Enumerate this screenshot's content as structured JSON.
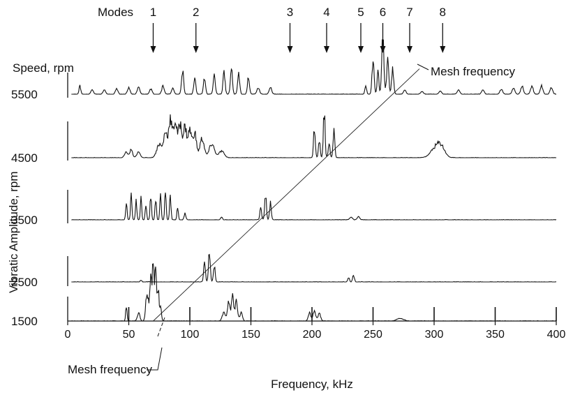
{
  "chart_data": {
    "type": "line",
    "title": "",
    "xlabel": "Frequency, kHz",
    "ylabel": "Vibration Amplitude, rpm",
    "ylabel_visible": "Vibratic Amplitude, rpm",
    "speed_label": "Speed, rpm",
    "xlim": [
      0,
      400
    ],
    "x_ticks": [
      0,
      50,
      100,
      150,
      200,
      250,
      300,
      350,
      400
    ],
    "x_tick_labels": [
      "0",
      "50",
      "100",
      "150",
      "200",
      "250",
      "300",
      "350",
      "400"
    ],
    "modes": {
      "label": "Modes",
      "values": [
        70,
        105,
        182,
        212,
        240,
        258,
        280,
        307
      ],
      "labels": [
        "1",
        "2",
        "3",
        "4",
        "5",
        "6",
        "7",
        "8"
      ]
    },
    "mesh_frequency": {
      "label_top": "Mesh frequency",
      "label_bottom": "Mesh frequency",
      "line_points": [
        [
          70,
          1500
        ],
        [
          288,
          5900
        ]
      ]
    },
    "series": [
      {
        "speed": 1500,
        "label": "1500",
        "peaks": [
          [
            48,
            0.25,
            0.8
          ],
          [
            58,
            0.15,
            1.5
          ],
          [
            65,
            0.55,
            1.5
          ],
          [
            68,
            0.85,
            1.2
          ],
          [
            70,
            1.0,
            1.0
          ],
          [
            72,
            0.9,
            1.0
          ],
          [
            74,
            0.6,
            1.0
          ],
          [
            76,
            0.3,
            1.0
          ],
          [
            128,
            0.15,
            2
          ],
          [
            132,
            0.35,
            1.5
          ],
          [
            135,
            0.45,
            1.2
          ],
          [
            138,
            0.35,
            1.5
          ],
          [
            142,
            0.15,
            1.5
          ],
          [
            198,
            0.15,
            1.5
          ],
          [
            202,
            0.2,
            1.5
          ],
          [
            206,
            0.15,
            1.5
          ],
          [
            272,
            0.05,
            4
          ]
        ],
        "markers": [
          50,
          100,
          150,
          200,
          250,
          300,
          350,
          400
        ]
      },
      {
        "speed": 2500,
        "label": "2500",
        "peaks": [
          [
            60,
            0.03,
            1
          ],
          [
            112,
            0.4,
            1
          ],
          [
            116,
            0.55,
            1
          ],
          [
            120,
            0.3,
            1
          ],
          [
            230,
            0.08,
            1
          ],
          [
            234,
            0.12,
            1
          ]
        ],
        "markers": []
      },
      {
        "speed": 3500,
        "label": "3500",
        "peaks": [
          [
            48,
            0.3,
            0.8
          ],
          [
            52,
            0.45,
            0.8
          ],
          [
            56,
            0.35,
            0.8
          ],
          [
            60,
            0.4,
            0.8
          ],
          [
            64,
            0.3,
            0.8
          ],
          [
            68,
            0.45,
            0.8
          ],
          [
            72,
            0.4,
            0.8
          ],
          [
            76,
            0.5,
            0.8
          ],
          [
            80,
            0.55,
            0.8
          ],
          [
            84,
            0.45,
            0.8
          ],
          [
            90,
            0.25,
            0.8
          ],
          [
            96,
            0.12,
            1
          ],
          [
            126,
            0.05,
            1
          ],
          [
            158,
            0.2,
            1
          ],
          [
            162,
            0.45,
            1
          ],
          [
            166,
            0.3,
            1
          ],
          [
            232,
            0.05,
            1.5
          ],
          [
            238,
            0.06,
            1.5
          ]
        ],
        "markers": []
      },
      {
        "speed": 4500,
        "label": "4500",
        "peaks": [
          [
            48,
            0.1,
            2
          ],
          [
            52,
            0.15,
            1.5
          ],
          [
            58,
            0.1,
            2
          ],
          [
            75,
            0.25,
            3
          ],
          [
            80,
            0.45,
            2
          ],
          [
            84,
            0.7,
            2
          ],
          [
            88,
            0.65,
            2
          ],
          [
            92,
            0.6,
            2
          ],
          [
            96,
            0.55,
            2
          ],
          [
            100,
            0.5,
            2
          ],
          [
            104,
            0.45,
            2
          ],
          [
            110,
            0.35,
            2.5
          ],
          [
            118,
            0.25,
            3
          ],
          [
            126,
            0.12,
            3
          ],
          [
            202,
            0.55,
            1
          ],
          [
            206,
            0.3,
            1
          ],
          [
            210,
            0.85,
            1
          ],
          [
            214,
            0.3,
            1
          ],
          [
            218,
            0.5,
            1
          ],
          [
            302,
            0.2,
            6
          ],
          [
            306,
            0.12,
            4
          ]
        ],
        "markers": []
      },
      {
        "speed": 5500,
        "label": "5500",
        "peaks": [
          [
            10,
            0.15,
            1
          ],
          [
            20,
            0.08,
            1.5
          ],
          [
            30,
            0.08,
            1.5
          ],
          [
            40,
            0.1,
            1.5
          ],
          [
            50,
            0.12,
            1.5
          ],
          [
            58,
            0.12,
            1.5
          ],
          [
            68,
            0.1,
            1.5
          ],
          [
            78,
            0.15,
            1.5
          ],
          [
            86,
            0.1,
            1.5
          ],
          [
            94,
            0.45,
            1.2
          ],
          [
            104,
            0.3,
            1.2
          ],
          [
            112,
            0.3,
            1.2
          ],
          [
            120,
            0.35,
            1.2
          ],
          [
            128,
            0.4,
            1.2
          ],
          [
            134,
            0.45,
            1.2
          ],
          [
            140,
            0.38,
            1.2
          ],
          [
            148,
            0.3,
            1.2
          ],
          [
            156,
            0.12,
            1.5
          ],
          [
            166,
            0.12,
            1.5
          ],
          [
            244,
            0.15,
            1
          ],
          [
            250,
            0.6,
            1.2
          ],
          [
            254,
            0.4,
            1
          ],
          [
            258,
            1.0,
            1.3
          ],
          [
            262,
            0.6,
            1.2
          ],
          [
            266,
            0.45,
            1.2
          ],
          [
            276,
            0.08,
            1.5
          ],
          [
            290,
            0.05,
            1.5
          ],
          [
            305,
            0.06,
            1.5
          ],
          [
            320,
            0.08,
            1.5
          ],
          [
            340,
            0.08,
            1.5
          ],
          [
            355,
            0.1,
            1.5
          ],
          [
            365,
            0.12,
            1.5
          ],
          [
            372,
            0.15,
            1.5
          ],
          [
            380,
            0.15,
            1.5
          ],
          [
            388,
            0.15,
            1.5
          ],
          [
            396,
            0.12,
            1.5
          ]
        ],
        "markers": []
      }
    ]
  }
}
